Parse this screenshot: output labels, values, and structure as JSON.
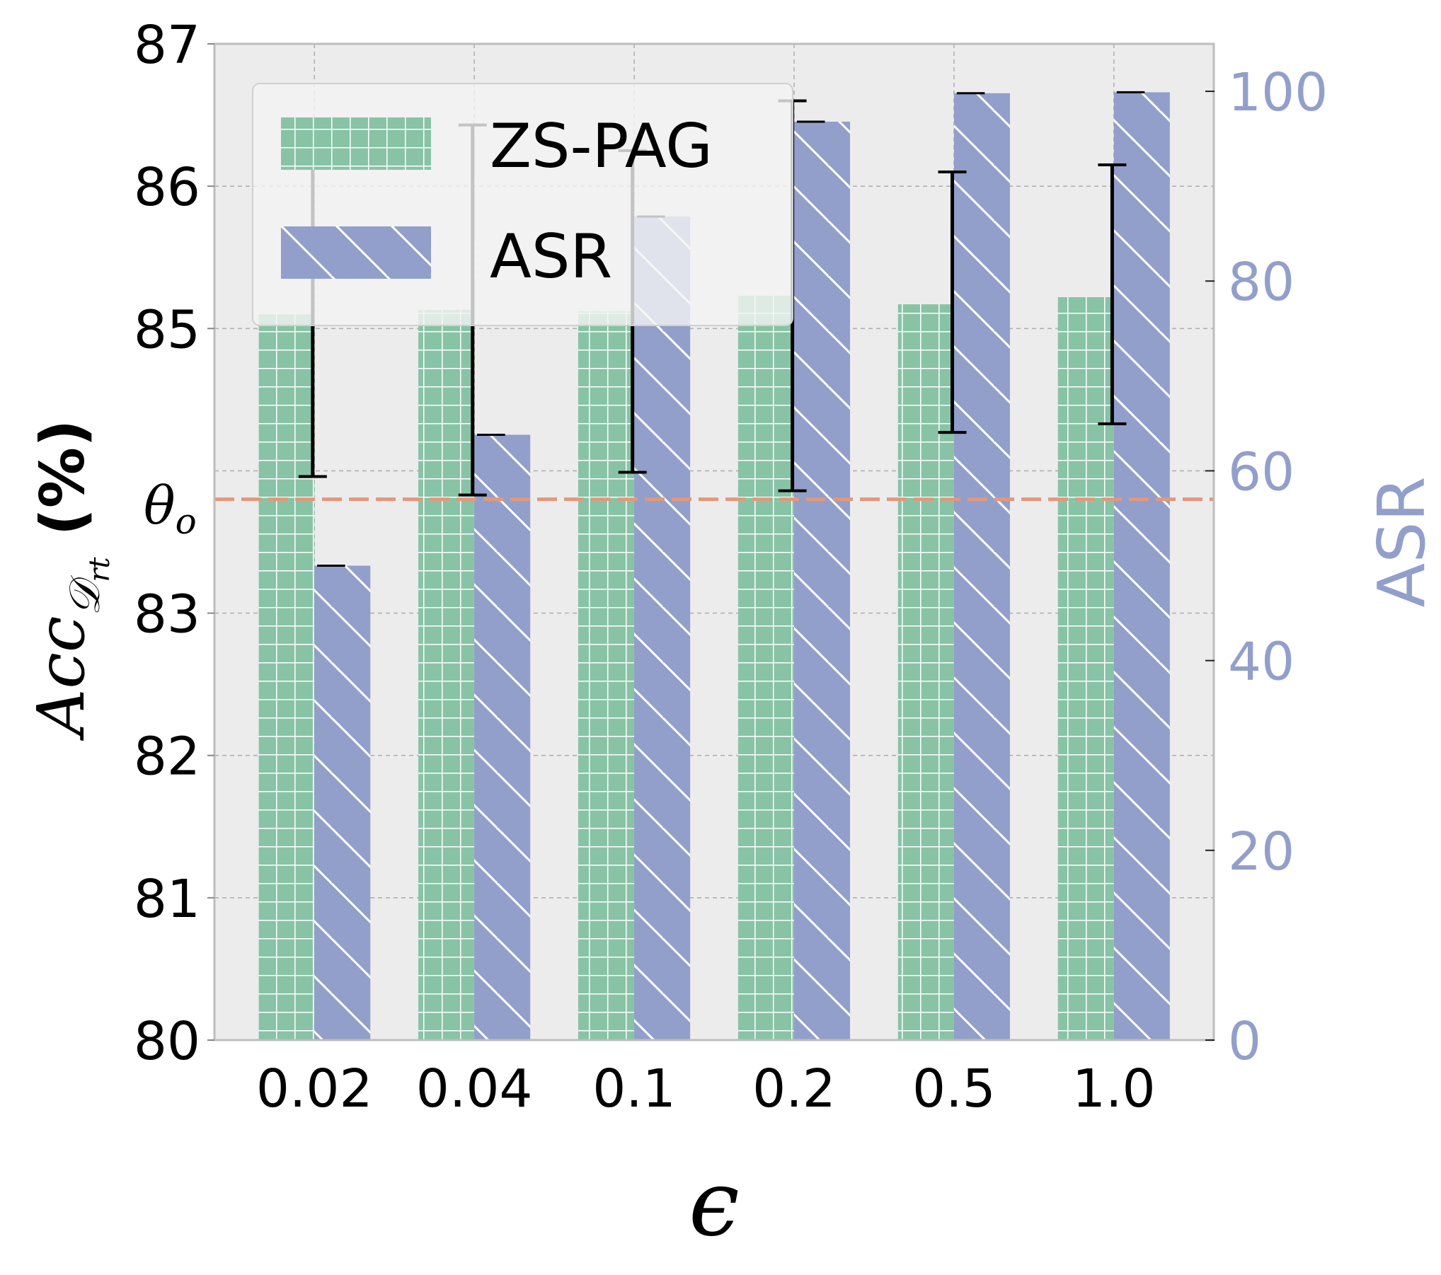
{
  "chart_data": {
    "type": "bar",
    "categories": [
      "0.02",
      "0.04",
      "0.1",
      "0.2",
      "0.5",
      "1.0"
    ],
    "series": [
      {
        "name": "ZS-PAG",
        "axis": "left",
        "values": [
          85.1,
          85.13,
          85.12,
          85.23,
          85.17,
          85.22
        ],
        "error_low": [
          83.96,
          83.83,
          83.99,
          83.86,
          84.27,
          84.33
        ],
        "error_high": [
          86.24,
          86.43,
          86.25,
          86.6,
          86.1,
          86.15
        ],
        "color": "#88c3a6"
      },
      {
        "name": "ASR",
        "axis": "right",
        "values": [
          50.0,
          63.8,
          86.8,
          96.8,
          99.8,
          99.9
        ],
        "color": "#929fca"
      }
    ],
    "left_axis": {
      "label_main": "Acc",
      "label_sub": "𝒟",
      "label_subsub": "rt",
      "label_suffix": "(%)",
      "ylim": [
        80,
        87
      ],
      "ticks": [
        "80",
        "81",
        "82",
        "83",
        "85",
        "86",
        "87"
      ],
      "tick_values": [
        80,
        81,
        82,
        83,
        85,
        86,
        87
      ]
    },
    "right_axis": {
      "label": "ASR",
      "ylim": [
        0,
        105
      ],
      "ticks": [
        "0",
        "20",
        "40",
        "60",
        "80",
        "100"
      ],
      "tick_values": [
        0,
        20,
        40,
        60,
        80,
        100
      ],
      "color": "#929fca"
    },
    "xlabel": "ϵ",
    "threshold": {
      "label": "θ",
      "label_sub": "o",
      "value": 83.8,
      "color": "#e3977b"
    },
    "legend": {
      "position": "upper-left",
      "entries": [
        "ZS-PAG",
        "ASR"
      ]
    },
    "grid": true,
    "background": "#ececec"
  }
}
